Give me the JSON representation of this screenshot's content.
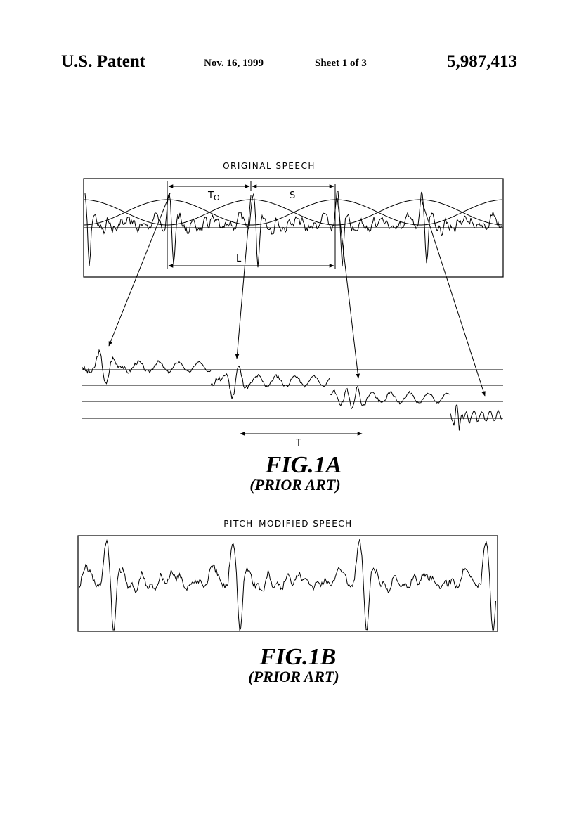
{
  "header": {
    "left": "U.S. Patent",
    "date": "Nov. 16, 1999",
    "sheet": "Sheet 1 of 3",
    "patent_number": "5,987,413"
  },
  "fig1a": {
    "panel_label": "ORIGINAL SPEECH",
    "t0_symbol": "T",
    "t0_subscript": "O",
    "s_label": "S",
    "l_label": "L",
    "t_label": "T",
    "title": "FIG.1A",
    "subtitle": "(PRIOR ART)"
  },
  "fig1b": {
    "panel_label": "PITCH–MODIFIED SPEECH",
    "title": "FIG.1B",
    "subtitle": "(PRIOR ART)"
  }
}
